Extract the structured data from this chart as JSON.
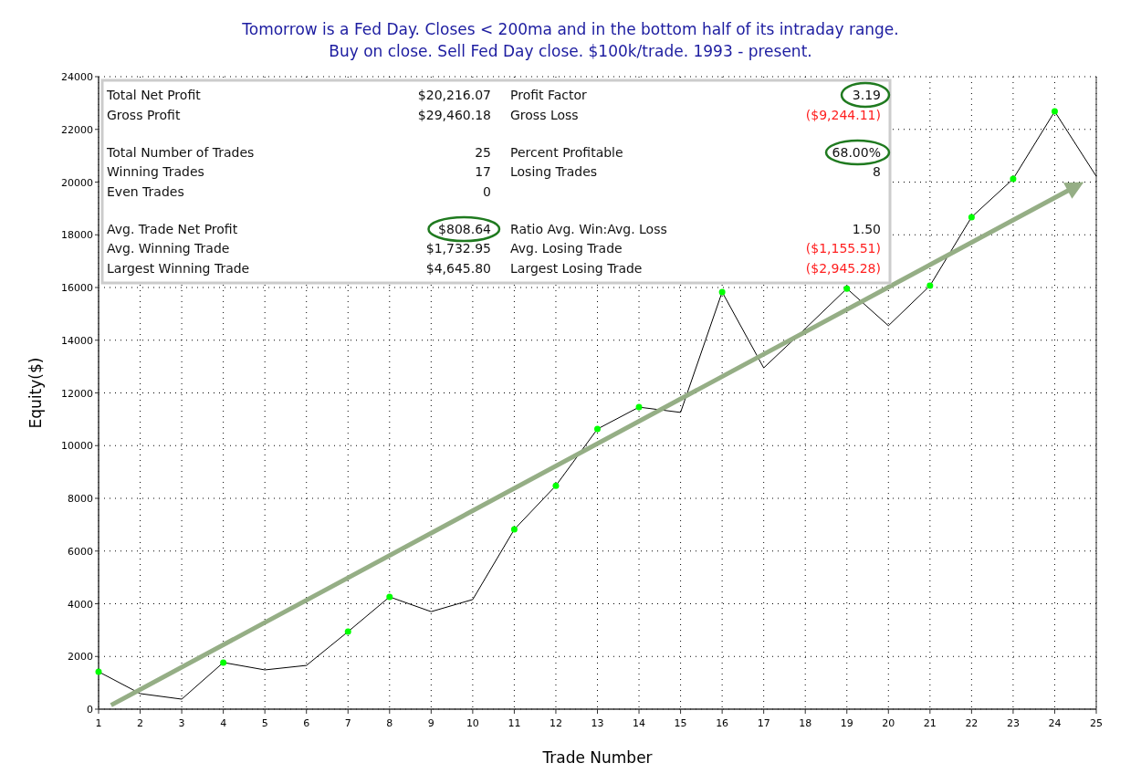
{
  "chart_data": {
    "type": "line",
    "title": "Tomorrow is a Fed Day. Closes < 200ma and in the bottom half of its intraday range.",
    "subtitle": "Buy on close. Sell Fed Day close. $100k/trade. 1993 - present.",
    "xlabel": "Trade Number",
    "ylabel": "Equity($)",
    "x": [
      1,
      2,
      3,
      4,
      5,
      6,
      7,
      8,
      9,
      10,
      11,
      12,
      13,
      14,
      15,
      16,
      17,
      18,
      19,
      20,
      21,
      22,
      23,
      24,
      25
    ],
    "series": [
      {
        "color": "#000000",
        "marker": "none",
        "values": [
          1420,
          590,
          380,
          1770,
          1490,
          1660,
          2940,
          4260,
          3700,
          4160,
          6820,
          8480,
          10630,
          11460,
          11260,
          15830,
          12950,
          14440,
          15960,
          14550,
          16070,
          18670,
          20120,
          22680,
          20220
        ]
      },
      {
        "type": "scatter",
        "color": "#00ff00",
        "marker": "circle",
        "x": [
          1,
          4,
          7,
          8,
          11,
          12,
          13,
          14,
          16,
          19,
          21,
          22,
          23,
          24
        ],
        "values": [
          1420,
          1770,
          2940,
          4260,
          6820,
          8480,
          10630,
          11460,
          15830,
          15960,
          16070,
          18670,
          20120,
          22680
        ]
      }
    ],
    "xlim": [
      1,
      25
    ],
    "xticks": [
      1,
      2,
      3,
      4,
      5,
      6,
      7,
      8,
      9,
      10,
      11,
      12,
      13,
      14,
      15,
      16,
      17,
      18,
      19,
      20,
      21,
      22,
      23,
      24,
      25
    ],
    "ylim": [
      0,
      24000
    ],
    "yticks": [
      0,
      2000,
      4000,
      6000,
      8000,
      10000,
      12000,
      14000,
      16000,
      18000,
      20000,
      22000,
      24000
    ],
    "grid": true,
    "annotations": [
      "Total Net Profit",
      "$20,216.07",
      "Profit Factor",
      "3.19",
      "Gross Profit",
      "$29,460.18",
      "Gross Loss",
      "($9,244.11)",
      "Total Number of Trades",
      "25",
      "Percent Profitable",
      "68.00%",
      "Winning Trades",
      "17",
      "Losing Trades",
      "8",
      "Even Trades",
      "0",
      "Avg. Trade Net Profit",
      "$808.64",
      "Ratio Avg. Win:Avg. Loss",
      "1.50",
      "Avg. Winning Trade",
      "$1,732.95",
      "Avg. Losing Trade",
      "($1,155.51)",
      "Largest Winning Trade",
      "$4,645.80",
      "Largest Losing Trade",
      "($2,945.28)"
    ]
  }
}
